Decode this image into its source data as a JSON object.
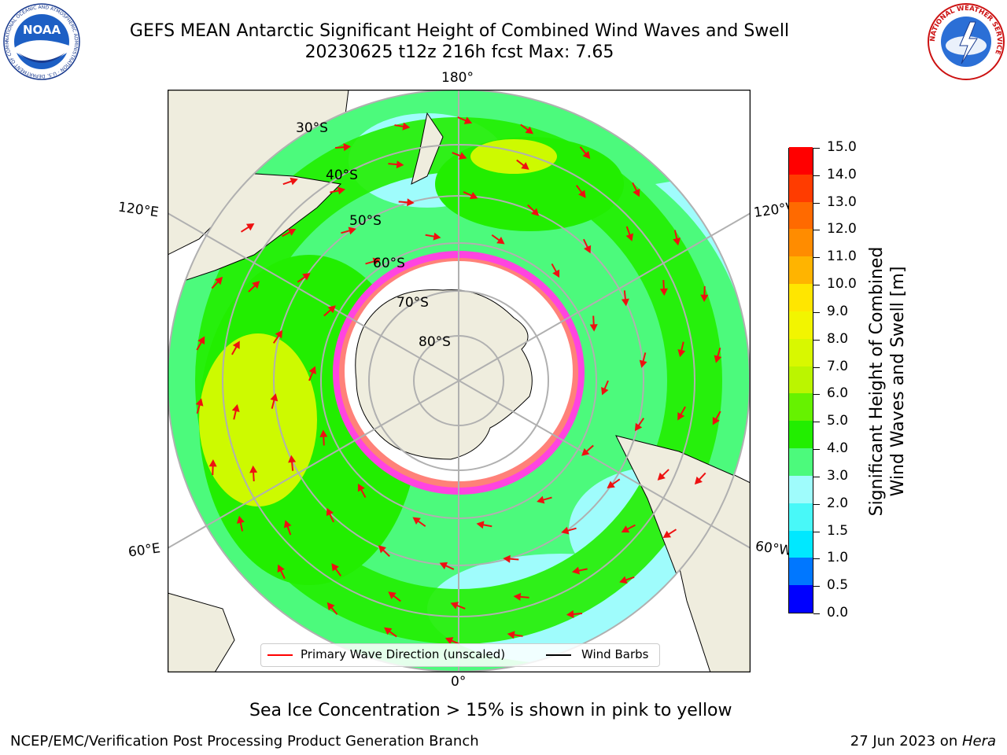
{
  "header": {
    "title_line1": "GEFS MEAN Antarctic Significant Height of Combined Wind Waves and Swell",
    "title_line2": "20230625 t12z 216h fcst   Max: 7.65"
  },
  "map": {
    "projection": "south-polar-stereographic",
    "longitude_labels": {
      "top": "180°",
      "bottom": "0°",
      "upper_left": "120°E",
      "upper_right": "120°W",
      "lower_left": "60°E",
      "lower_right": "60°W"
    },
    "latitude_labels": [
      "30°S",
      "40°S",
      "50°S",
      "60°S",
      "70°S",
      "80°S"
    ],
    "colors": {
      "land": "#efedde",
      "ocean_calm": "#9ffcfc",
      "ocean_moderate": "#4cfa7c",
      "ocean_rough": "#22ee00",
      "ocean_high": "#cdfa00",
      "sea_ice_edge": "#ff44e0",
      "sea_ice_high": "#ffaa33",
      "antarctica_interior": "#ffffff",
      "graticule": "#b0b0b0",
      "wave_arrow": "#ee1111",
      "wind_barb": "#000000"
    }
  },
  "legend": {
    "items": [
      {
        "label": "Primary Wave Direction (unscaled)",
        "color": "#ff0000"
      },
      {
        "label": "Wind Barbs",
        "color": "#000000"
      }
    ]
  },
  "colorbar": {
    "title_line1": "Significant Height of Combined",
    "title_line2": "Wind Waves and Swell [m]",
    "ticks": [
      "0.0",
      "0.5",
      "1.0",
      "1.5",
      "2.0",
      "3.0",
      "4.0",
      "5.0",
      "6.0",
      "7.0",
      "8.0",
      "9.0",
      "10.0",
      "11.0",
      "12.0",
      "13.0",
      "14.0",
      "15.0"
    ],
    "colors": [
      "#0000ff",
      "#0077ff",
      "#00e8ff",
      "#48f8f8",
      "#9ffcfc",
      "#4cfa7c",
      "#22ee00",
      "#66f200",
      "#bbf500",
      "#d8f800",
      "#f2f500",
      "#ffe600",
      "#ffb400",
      "#ff8c00",
      "#ff6a00",
      "#ff3c00",
      "#ff0000"
    ]
  },
  "caption": "Sea Ice Concentration > 15% is shown in pink to yellow",
  "footer": {
    "left": "NCEP/EMC/Verification Post Processing Product Generation Branch",
    "right_prefix": "27 Jun 2023 on ",
    "right_emphasis": "Hera"
  },
  "logos": {
    "noaa_text": "NOAA",
    "noaa_ring_text": "NATIONAL OCEANIC AND ATMOSPHERIC ADMINISTRATION · U.S. DEPARTMENT OF COMMERCE",
    "nws_ring_text": "NATIONAL WEATHER SERVICE"
  }
}
